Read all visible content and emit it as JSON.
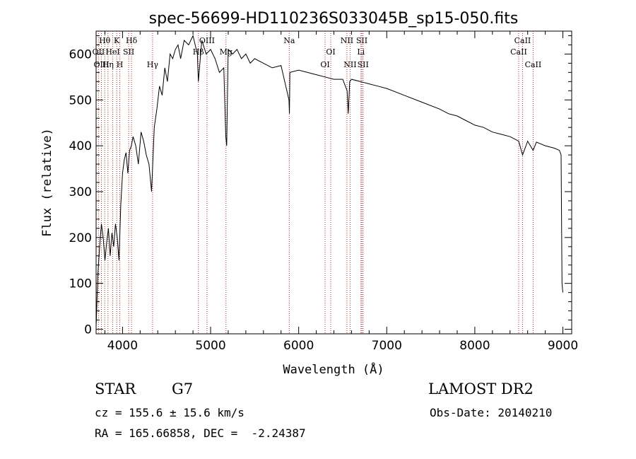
{
  "chart_data": {
    "type": "line",
    "title": "spec-56699-HD110236S033045B_sp15-050.fits",
    "xlabel": "Wavelength (Å)",
    "ylabel": "Flux (relative)",
    "xlim": [
      3700,
      9100
    ],
    "ylim": [
      -10,
      650
    ],
    "xticks": [
      4000,
      5000,
      6000,
      7000,
      8000,
      9000
    ],
    "yticks": [
      0,
      100,
      200,
      300,
      400,
      500,
      600
    ],
    "grid": false,
    "series": [
      {
        "x": [
          3700,
          3720,
          3740,
          3760,
          3780,
          3800,
          3820,
          3840,
          3860,
          3880,
          3900,
          3920,
          3940,
          3960,
          3980,
          4000,
          4020,
          4040,
          4060,
          4080,
          4100,
          4120,
          4150,
          4180,
          4210,
          4240,
          4270,
          4300,
          4330,
          4360,
          4390,
          4420,
          4450,
          4480,
          4510,
          4540,
          4570,
          4600,
          4630,
          4660,
          4700,
          4750,
          4800,
          4850,
          4861,
          4900,
          4950,
          5000,
          5050,
          5100,
          5150,
          5172,
          5183,
          5200,
          5250,
          5300,
          5350,
          5400,
          5450,
          5500,
          5600,
          5700,
          5800,
          5890,
          5895,
          5900,
          6000,
          6100,
          6200,
          6300,
          6400,
          6500,
          6550,
          6563,
          6580,
          6600,
          6700,
          6800,
          6900,
          7000,
          7200,
          7400,
          7600,
          7700,
          7800,
          7900,
          8000,
          8100,
          8200,
          8300,
          8400,
          8498,
          8542,
          8600,
          8662,
          8700,
          8800,
          8900,
          8960,
          8980,
          8990,
          9000
        ],
        "y": [
          5,
          120,
          180,
          230,
          200,
          150,
          190,
          220,
          160,
          210,
          180,
          230,
          200,
          150,
          270,
          340,
          370,
          385,
          340,
          390,
          400,
          420,
          400,
          360,
          430,
          410,
          380,
          360,
          300,
          440,
          480,
          530,
          510,
          570,
          540,
          600,
          590,
          610,
          620,
          590,
          630,
          620,
          640,
          600,
          540,
          630,
          600,
          610,
          590,
          560,
          570,
          420,
          400,
          610,
          600,
          610,
          590,
          600,
          580,
          590,
          580,
          570,
          575,
          500,
          470,
          560,
          565,
          560,
          555,
          550,
          545,
          545,
          520,
          470,
          540,
          545,
          540,
          535,
          530,
          525,
          510,
          495,
          480,
          470,
          465,
          455,
          445,
          440,
          430,
          425,
          420,
          410,
          380,
          410,
          390,
          408,
          400,
          395,
          390,
          380,
          100,
          80
        ]
      }
    ],
    "spectral_lines": [
      {
        "label": "Hθ",
        "x": 3798,
        "row": 1
      },
      {
        "label": "OII",
        "x": 3727,
        "row": 2
      },
      {
        "label": "OIII",
        "x": 3760,
        "row": 3
      },
      {
        "label": "K",
        "x": 3934,
        "row": 1
      },
      {
        "label": "HeI",
        "x": 3889,
        "row": 2
      },
      {
        "label": "Hη",
        "x": 3835,
        "row": 3
      },
      {
        "label": "Hδ",
        "x": 4102,
        "row": 1
      },
      {
        "label": "SII",
        "x": 4070,
        "row": 2
      },
      {
        "label": "H",
        "x": 3969,
        "row": 3
      },
      {
        "label": "Hγ",
        "x": 4341,
        "row": 3
      },
      {
        "label": "OIII",
        "x": 4959,
        "row": 1
      },
      {
        "label": "Hβ",
        "x": 4861,
        "row": 2
      },
      {
        "label": "Mg",
        "x": 5175,
        "row": 2
      },
      {
        "label": "Na",
        "x": 5893,
        "row": 1
      },
      {
        "label": "OI",
        "x": 6300,
        "row": 3
      },
      {
        "label": "OI",
        "x": 6364,
        "row": 2
      },
      {
        "label": "NII",
        "x": 6548,
        "row": 1
      },
      {
        "label": "SII",
        "x": 6717,
        "row": 1
      },
      {
        "label": "Li",
        "x": 6707,
        "row": 2
      },
      {
        "label": "NII",
        "x": 6584,
        "row": 3
      },
      {
        "label": "SII",
        "x": 6731,
        "row": 3
      },
      {
        "label": "CaII",
        "x": 8542,
        "row": 1
      },
      {
        "label": "CaII",
        "x": 8498,
        "row": 2
      },
      {
        "label": "CaII",
        "x": 8662,
        "row": 3
      }
    ]
  },
  "info": {
    "object_class": "STAR",
    "subclass": "G7",
    "survey": "LAMOST DR2",
    "cz": "cz = 155.6 ± 15.6 km/s",
    "obs_date": "Obs-Date: 20140210",
    "coords": "RA = 165.66858, DEC =  -2.24387"
  }
}
